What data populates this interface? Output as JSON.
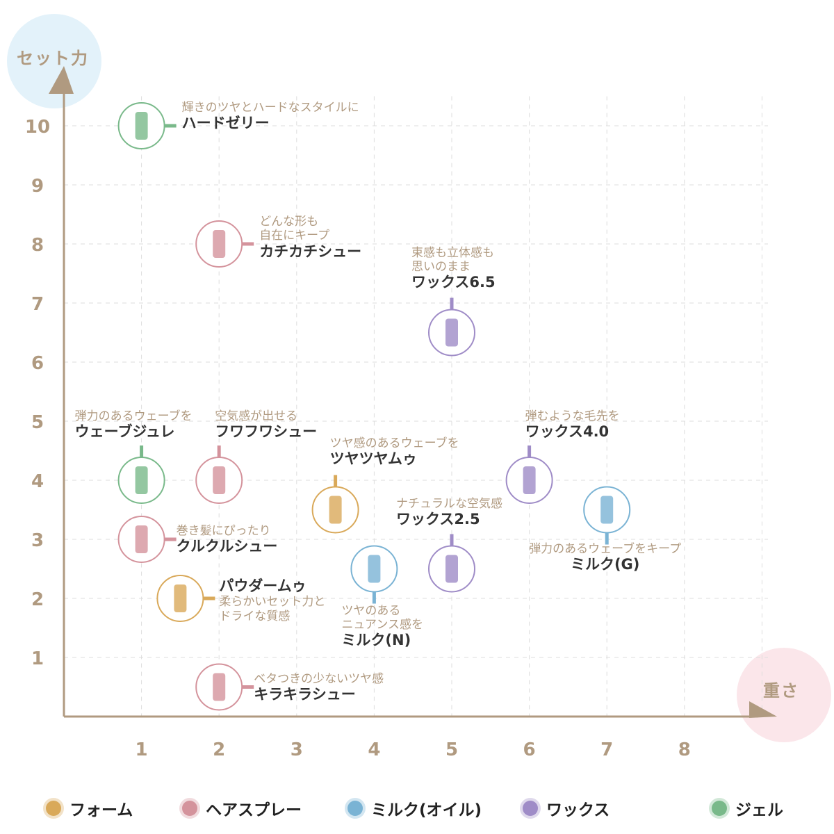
{
  "chart_data": {
    "type": "scatter",
    "xlabel": "重さ",
    "ylabel": "セット力",
    "xlim": [
      0,
      9
    ],
    "ylim": [
      0,
      10.5
    ],
    "x_ticks": [
      "1",
      "2",
      "3",
      "4",
      "5",
      "6",
      "7",
      "8"
    ],
    "y_ticks": [
      "1",
      "2",
      "3",
      "4",
      "5",
      "6",
      "7",
      "8",
      "9",
      "10"
    ],
    "grid": true,
    "legend_placement": "bottom",
    "categories": [
      {
        "key": "foam",
        "name": "フォーム",
        "color": "#d9a95a"
      },
      {
        "key": "spray",
        "name": "ヘアスプレー",
        "color": "#d4939c"
      },
      {
        "key": "milk",
        "name": "ミルク(オイル)",
        "color": "#7ab3d4"
      },
      {
        "key": "wax",
        "name": "ワックス",
        "color": "#9f8cc7"
      },
      {
        "key": "gel",
        "name": "ジェル",
        "color": "#79b98a"
      }
    ],
    "points": [
      {
        "name": "ハードゼリー",
        "desc": [
          "輝きのツヤとハードなスタイルに"
        ],
        "category": "gel",
        "x": 1,
        "y": 10
      },
      {
        "name": "カチカチシュー",
        "desc": [
          "どんな形も",
          "自在にキープ"
        ],
        "category": "spray",
        "x": 2,
        "y": 8
      },
      {
        "name": "ワックス6.5",
        "desc": [
          "束感も立体感も",
          "思いのまま"
        ],
        "category": "wax",
        "x": 5,
        "y": 6.5
      },
      {
        "name": "ウェーブジュレ",
        "desc": [
          "弾力のあるウェーブを"
        ],
        "category": "gel",
        "x": 1,
        "y": 4
      },
      {
        "name": "フワフワシュー",
        "desc": [
          "空気感が出せる"
        ],
        "category": "spray",
        "x": 2,
        "y": 4
      },
      {
        "name": "ツヤツヤムゥ",
        "desc": [
          "ツヤ感のあるウェーブを"
        ],
        "category": "foam",
        "x": 3.5,
        "y": 3.5
      },
      {
        "name": "クルクルシュー",
        "desc": [
          "巻き髪にぴったり"
        ],
        "category": "spray",
        "x": 1,
        "y": 3
      },
      {
        "name": "パウダームゥ",
        "desc": [
          "柔らかいセット力と",
          "ドライな質感"
        ],
        "category": "foam",
        "x": 1.5,
        "y": 2
      },
      {
        "name": "ミルク(N)",
        "desc": [
          "ツヤのある",
          "ニュアンス感を"
        ],
        "category": "milk",
        "x": 4,
        "y": 2.5
      },
      {
        "name": "ワックス2.5",
        "desc": [
          "ナチュラルな空気感"
        ],
        "category": "wax",
        "x": 5,
        "y": 2.5
      },
      {
        "name": "ワックス4.0",
        "desc": [
          "弾むような毛先を"
        ],
        "category": "wax",
        "x": 6,
        "y": 4
      },
      {
        "name": "ミルク(G)",
        "desc": [
          "弾力のあるウェーブをキープ"
        ],
        "category": "milk",
        "x": 7,
        "y": 3.5
      },
      {
        "name": "キラキラシュー",
        "desc": [
          "ベタつきの少ないツヤ感"
        ],
        "category": "spray",
        "x": 2,
        "y": 0.5
      }
    ]
  }
}
